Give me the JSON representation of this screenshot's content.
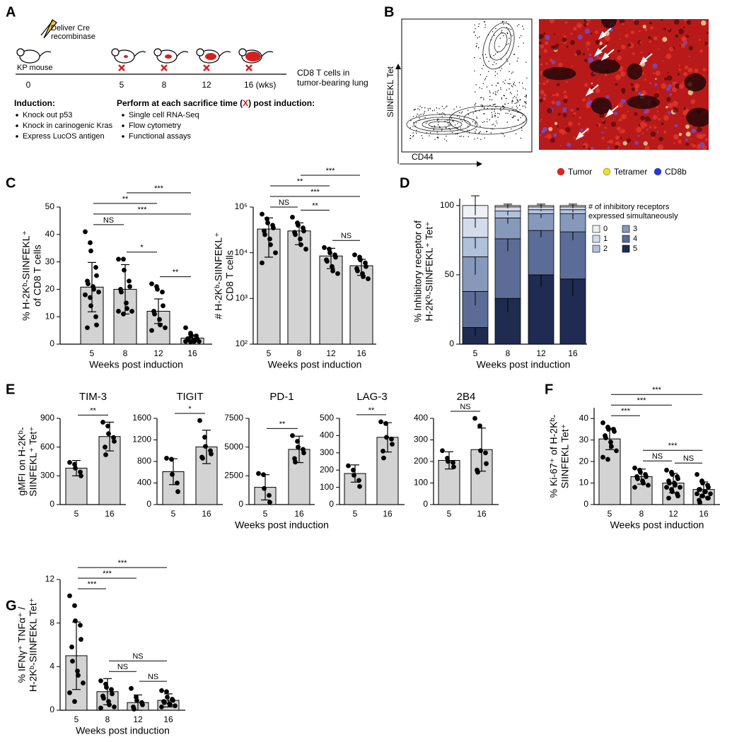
{
  "panel_labels": [
    "A",
    "B",
    "C",
    "D",
    "E",
    "F",
    "G"
  ],
  "panel_a": {
    "syringe_label": [
      "Deliver Cre",
      "recombinase"
    ],
    "mouse_label": "KP mouse",
    "timeline": [
      "0",
      "5",
      "8",
      "12",
      "16 (wks)"
    ],
    "readout": [
      "CD8 T cells in",
      "tumor-bearing lung"
    ],
    "induction": {
      "heading": "Induction:",
      "items": [
        "Knock out p53",
        "Knock in carinogenic Kras",
        "Express LucOS antigen"
      ]
    },
    "assays": {
      "heading_parts": [
        "Perform at each sacrifice time (",
        "X",
        ") post induction:"
      ],
      "items": [
        "Single cell RNA-Seq",
        "Flow cytometry",
        "Functional assays"
      ]
    }
  },
  "panel_b": {
    "y_axis_label": "SIINFEKL Tet",
    "x_axis_label": "CD44",
    "legend": [
      {
        "name": "Tumor",
        "color": "#e8201c"
      },
      {
        "name": "Tetramer",
        "color": "#f0e020"
      },
      {
        "name": "CD8b",
        "color": "#2438e0"
      }
    ]
  },
  "chart_data": [
    {
      "type": "bar",
      "color": "#d3d3d3",
      "ylabel": [
        "% H-2Kᵇ-SIINFEKL⁺",
        "of CD8 T cells"
      ],
      "xlabel": "Weeks post induction",
      "categories": [
        "5",
        "8",
        "12",
        "16"
      ],
      "values": [
        20.8,
        20,
        12,
        2.2
      ],
      "errors": [
        9,
        9,
        4.5,
        1.2
      ],
      "points": [
        [
          41,
          37,
          34,
          28,
          25,
          23,
          22,
          21,
          20,
          19,
          18,
          17,
          14,
          10,
          7,
          6
        ],
        [
          31,
          31,
          27,
          23,
          21,
          20,
          19,
          15,
          13,
          12,
          12,
          11
        ],
        [
          22,
          21,
          20,
          19,
          14,
          12,
          11,
          9,
          7,
          6,
          5
        ],
        [
          6,
          4,
          3,
          3,
          2,
          2,
          2,
          1.5,
          1,
          1,
          1,
          0.8
        ]
      ],
      "ylim": [
        0,
        50
      ],
      "yticks": [
        0,
        10,
        20,
        30,
        40,
        50
      ],
      "comparisons": [
        {
          "from": "5",
          "to": "8",
          "label": "NS"
        },
        {
          "from": "8",
          "to": "12",
          "label": "*"
        },
        {
          "from": "12",
          "to": "16",
          "label": "**"
        },
        {
          "from": "5",
          "to": "16",
          "label": "***"
        },
        {
          "from": "5",
          "to": "12",
          "label": "**"
        },
        {
          "from": "8",
          "to": "16",
          "label": "***"
        }
      ]
    },
    {
      "type": "bar",
      "color": "#d3d3d3",
      "log_scale": true,
      "ylabel": [
        "# H-2Kᵇ-SIINFEKL⁺",
        "CD8 T cells"
      ],
      "xlabel": "Weeks post induction",
      "categories": [
        "5",
        "8",
        "12",
        "16"
      ],
      "values": [
        33000,
        30000,
        8500,
        5200
      ],
      "errors": [
        25000,
        15000,
        4000,
        2000
      ],
      "points": [
        [
          70000,
          55000,
          45000,
          40000,
          35000,
          30000,
          25000,
          20000,
          15000,
          10000,
          6000
        ],
        [
          60000,
          45000,
          40000,
          35000,
          30000,
          28000,
          25000,
          20000,
          15000,
          12000
        ],
        [
          13000,
          12000,
          10000,
          9000,
          8000,
          7000,
          6500,
          5000,
          4000,
          3500
        ],
        [
          9000,
          8000,
          7000,
          6000,
          5000,
          4500,
          4000,
          3500,
          3000,
          2700
        ]
      ],
      "ylim": [
        100,
        100000
      ],
      "yticks": [
        {
          "value": 100,
          "label": "10²"
        },
        {
          "value": 1000,
          "label": "10³"
        },
        {
          "value": 10000,
          "label": "10⁴"
        },
        {
          "value": 100000,
          "label": "10⁵"
        }
      ],
      "comparisons": [
        {
          "from": "5",
          "to": "8",
          "label": "NS"
        },
        {
          "from": "8",
          "to": "12",
          "label": "**"
        },
        {
          "from": "12",
          "to": "16",
          "label": "NS"
        },
        {
          "from": "5",
          "to": "16",
          "label": "***"
        },
        {
          "from": "5",
          "to": "12",
          "label": "**"
        },
        {
          "from": "8",
          "to": "16",
          "label": "***"
        }
      ]
    },
    {
      "type": "stacked_bar",
      "ylabel": [
        "% Inhibitory receptor of",
        "H-2Kᵇ-SIINFEKL⁺ Tet⁺"
      ],
      "xlabel": "Weeks post induction",
      "legend_title": [
        "# of inhibitory receptors",
        "expressed simultaneously"
      ],
      "categories": [
        "5",
        "8",
        "12",
        "16"
      ],
      "series": [
        {
          "name": "0",
          "color": "#eef0f6",
          "values": [
            9,
            1,
            1,
            1
          ],
          "errors": [
            7,
            1,
            1,
            1
          ]
        },
        {
          "name": "1",
          "color": "#d4dcec",
          "values": [
            14,
            3,
            2,
            2
          ],
          "errors": [
            7,
            1,
            1,
            1
          ]
        },
        {
          "name": "2",
          "color": "#b0c1da",
          "values": [
            14,
            5,
            3,
            3
          ],
          "errors": [
            8,
            3,
            1,
            2
          ]
        },
        {
          "name": "3",
          "color": "#8799bb",
          "values": [
            25,
            15,
            12,
            13
          ],
          "errors": [
            13,
            4,
            3,
            4
          ]
        },
        {
          "name": "4",
          "color": "#5b6d97",
          "values": [
            26,
            43,
            32,
            34
          ],
          "errors": [
            10,
            9,
            5,
            6
          ]
        },
        {
          "name": "5",
          "color": "#1f2b50",
          "values": [
            12,
            33,
            50,
            47
          ],
          "errors": [
            6,
            10,
            9,
            12
          ]
        }
      ],
      "ylim": [
        0,
        105
      ],
      "yticks": [
        0,
        50,
        100
      ]
    },
    {
      "type": "bar",
      "color": "#d3d3d3",
      "title": "TIM-3",
      "ylabel": [
        "gMFI on H-2Kᵇ-",
        "SIINFEKL⁺ Tet⁺"
      ],
      "categories": [
        "5",
        "16"
      ],
      "values": [
        380,
        710
      ],
      "errors": [
        80,
        150
      ],
      "points": [
        [
          440,
          420,
          380,
          340,
          300
        ],
        [
          860,
          820,
          740,
          700,
          660,
          600,
          520
        ]
      ],
      "ylim": [
        0,
        900
      ],
      "yticks": [
        0,
        300,
        600,
        900
      ],
      "comparisons": [
        {
          "from": "5",
          "to": "16",
          "label": "**"
        }
      ]
    },
    {
      "type": "bar",
      "color": "#d3d3d3",
      "title": "TIGIT",
      "categories": [
        "5",
        "16"
      ],
      "values": [
        610,
        1070
      ],
      "errors": [
        240,
        310
      ],
      "points": [
        [
          860,
          840,
          560,
          400,
          240
        ],
        [
          1560,
          1250,
          1080,
          1000,
          940,
          880,
          860
        ]
      ],
      "ylim": [
        0,
        1600
      ],
      "yticks": [
        0,
        400,
        800,
        1200,
        1600
      ],
      "comparisons": [
        {
          "from": "5",
          "to": "16",
          "label": "*"
        }
      ]
    },
    {
      "type": "bar",
      "color": "#d3d3d3",
      "title": "PD-1",
      "xlabel": "Weeks post induction",
      "categories": [
        "5",
        "16"
      ],
      "values": [
        1500,
        4800
      ],
      "errors": [
        1100,
        1150
      ],
      "points": [
        [
          2700,
          2600,
          1400,
          800,
          200
        ],
        [
          6000,
          5500,
          5000,
          4800,
          4500,
          4000,
          3700
        ]
      ],
      "ylim": [
        0,
        7500
      ],
      "yticks": [
        0,
        2500,
        5000,
        7500
      ],
      "comparisons": [
        {
          "from": "5",
          "to": "16",
          "label": "**"
        }
      ]
    },
    {
      "type": "bar",
      "color": "#d3d3d3",
      "title": "LAG-3",
      "categories": [
        "5",
        "16"
      ],
      "values": [
        180,
        390
      ],
      "errors": [
        50,
        85
      ],
      "points": [
        [
          225,
          200,
          170,
          140,
          105
        ],
        [
          480,
          470,
          390,
          380,
          350,
          310,
          270
        ]
      ],
      "ylim": [
        0,
        500
      ],
      "yticks": [
        0,
        100,
        200,
        300,
        400,
        500
      ],
      "comparisons": [
        {
          "from": "5",
          "to": "16",
          "label": "**"
        }
      ]
    },
    {
      "type": "bar",
      "color": "#d3d3d3",
      "title": "2B4",
      "categories": [
        "5",
        "16"
      ],
      "values": [
        205,
        255
      ],
      "errors": [
        40,
        100
      ],
      "points": [
        [
          250,
          215,
          200,
          195,
          175
        ],
        [
          400,
          365,
          250,
          240,
          190,
          160,
          150
        ]
      ],
      "ylim": [
        0,
        400
      ],
      "yticks": [
        0,
        100,
        200,
        300,
        400
      ],
      "comparisons": [
        {
          "from": "5",
          "to": "16",
          "label": "NS"
        }
      ]
    },
    {
      "type": "bar",
      "color": "#d3d3d3",
      "ylabel": [
        "% Ki-67⁺ of H-2Kᵇ-",
        "SIINFEKL Tet⁺"
      ],
      "xlabel": "Weeks post induction",
      "categories": [
        "5",
        "8",
        "12",
        "16"
      ],
      "values": [
        30.5,
        13,
        10,
        7
      ],
      "errors": [
        5,
        3.5,
        4.5,
        3.5
      ],
      "points": [
        [
          38,
          36,
          35,
          35,
          34,
          32,
          31,
          29,
          27,
          25,
          22,
          21
        ],
        [
          17,
          16,
          15,
          14,
          13,
          13,
          12,
          11,
          10,
          9,
          8
        ],
        [
          16,
          15,
          14,
          13,
          12,
          11,
          10,
          10,
          9,
          8,
          8,
          7,
          6,
          5,
          4,
          3
        ],
        [
          14,
          11,
          10,
          9,
          8,
          7,
          7,
          6,
          6,
          5,
          5,
          4,
          4,
          3,
          3,
          2,
          1
        ]
      ],
      "ylim": [
        0,
        45
      ],
      "yticks": [
        0,
        10,
        20,
        30,
        40
      ],
      "comparisons": [
        {
          "from": "8",
          "to": "12",
          "label": "NS"
        },
        {
          "from": "12",
          "to": "16",
          "label": "NS"
        },
        {
          "from": "8",
          "to": "16",
          "label": "***"
        },
        {
          "from": "5",
          "to": "8",
          "label": "***"
        },
        {
          "from": "5",
          "to": "12",
          "label": "***"
        },
        {
          "from": "5",
          "to": "16",
          "label": "***"
        }
      ]
    },
    {
      "type": "bar",
      "color": "#d3d3d3",
      "ylabel": [
        "% IFNγ⁺ TNFα⁺ /",
        "H-2Kᵇ-SIINFEKL Tet⁺"
      ],
      "xlabel": "Weeks post induction",
      "categories": [
        "5",
        "8",
        "12",
        "16"
      ],
      "values": [
        5,
        1.7,
        0.7,
        0.9
      ],
      "errors": [
        3.1,
        1.2,
        0.7,
        0.6
      ],
      "points": [
        [
          10.5,
          9.6,
          8.2,
          7.8,
          6.5,
          5.8,
          4.5,
          3.6,
          3.2,
          2.5,
          1.6,
          0.8
        ],
        [
          2.7,
          2.4,
          2.1,
          1.9,
          1.5,
          1.3,
          1.1,
          0.8,
          0.5,
          0.3,
          0.2
        ],
        [
          2,
          1.2,
          0.9,
          0.7,
          0.5,
          0.3,
          0.1
        ],
        [
          1.8,
          1.7,
          1.2,
          1,
          0.9,
          0.8,
          0.7,
          0.6,
          0.5,
          0.4,
          0.3
        ]
      ],
      "ylim": [
        0,
        12
      ],
      "yticks": [
        0,
        4,
        8,
        12
      ],
      "comparisons": [
        {
          "from": "8",
          "to": "12",
          "label": "NS"
        },
        {
          "from": "12",
          "to": "16",
          "label": "NS"
        },
        {
          "from": "8",
          "to": "16",
          "label": "NS"
        },
        {
          "from": "5",
          "to": "8",
          "label": "***"
        },
        {
          "from": "5",
          "to": "12",
          "label": "***"
        },
        {
          "from": "5",
          "to": "16",
          "label": "***"
        }
      ]
    }
  ]
}
